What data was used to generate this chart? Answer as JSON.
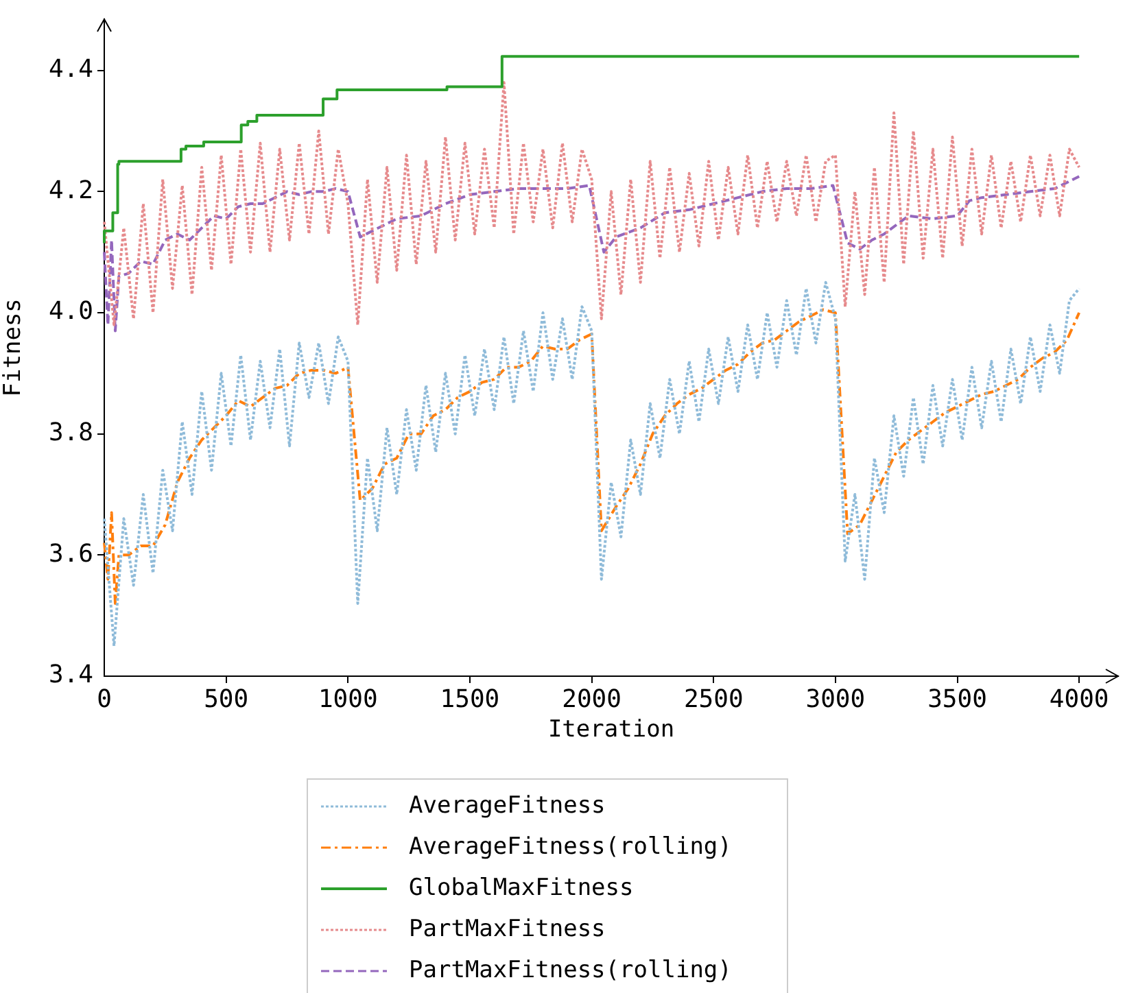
{
  "chart_data": {
    "type": "line",
    "xlabel": "Iteration",
    "ylabel": "Fitness",
    "xlim": [
      0,
      4160
    ],
    "ylim": [
      3.4,
      4.485
    ],
    "xticks": [
      0,
      500,
      1000,
      1500,
      2000,
      2500,
      3000,
      3500,
      4000
    ],
    "yticks": [
      3.4,
      3.6,
      3.8,
      {
        "value": 4,
        "label": "4.0"
      },
      4.2,
      4.4
    ],
    "grid": false,
    "legend": "bottom",
    "marker": "none",
    "series": [
      {
        "name": "AverageFitness",
        "color": "#8fbbd9",
        "line_style": "dotted",
        "x": [
          0,
          40,
          80,
          120,
          160,
          200,
          240,
          280,
          320,
          360,
          400,
          440,
          480,
          520,
          560,
          600,
          640,
          680,
          720,
          760,
          800,
          840,
          880,
          920,
          960,
          1000,
          1040,
          1080,
          1120,
          1160,
          1200,
          1240,
          1280,
          1320,
          1360,
          1400,
          1440,
          1480,
          1520,
          1560,
          1600,
          1640,
          1680,
          1720,
          1760,
          1800,
          1840,
          1880,
          1920,
          1960,
          2000,
          2040,
          2080,
          2120,
          2160,
          2200,
          2240,
          2280,
          2320,
          2360,
          2400,
          2440,
          2480,
          2520,
          2560,
          2600,
          2640,
          2680,
          2720,
          2760,
          2800,
          2840,
          2880,
          2920,
          2960,
          3000,
          3040,
          3080,
          3120,
          3160,
          3200,
          3240,
          3280,
          3320,
          3360,
          3400,
          3440,
          3480,
          3520,
          3560,
          3600,
          3640,
          3680,
          3720,
          3760,
          3800,
          3840,
          3880,
          3920,
          3960,
          4000
        ],
        "values": [
          3.66,
          3.45,
          3.66,
          3.55,
          3.7,
          3.57,
          3.74,
          3.64,
          3.82,
          3.7,
          3.87,
          3.74,
          3.9,
          3.78,
          3.93,
          3.79,
          3.92,
          3.81,
          3.94,
          3.78,
          3.95,
          3.86,
          3.95,
          3.85,
          3.96,
          3.92,
          3.52,
          3.76,
          3.64,
          3.81,
          3.7,
          3.84,
          3.74,
          3.88,
          3.77,
          3.9,
          3.8,
          3.93,
          3.83,
          3.94,
          3.84,
          3.96,
          3.85,
          3.97,
          3.87,
          4.0,
          3.89,
          3.99,
          3.89,
          4.01,
          3.97,
          3.56,
          3.72,
          3.63,
          3.79,
          3.7,
          3.85,
          3.76,
          3.89,
          3.8,
          3.92,
          3.82,
          3.94,
          3.85,
          3.96,
          3.87,
          3.98,
          3.89,
          4.0,
          3.91,
          4.02,
          3.93,
          4.04,
          3.95,
          4.05,
          3.99,
          3.59,
          3.7,
          3.56,
          3.76,
          3.67,
          3.83,
          3.73,
          3.86,
          3.75,
          3.88,
          3.78,
          3.89,
          3.79,
          3.91,
          3.81,
          3.92,
          3.82,
          3.94,
          3.85,
          3.96,
          3.87,
          3.98,
          3.9,
          4.02,
          4.04
        ]
      },
      {
        "name": "AverageFitness(rolling)",
        "color": "#ff7f0e",
        "line_style": "dashdot",
        "x": [
          0,
          15,
          30,
          45,
          60,
          100,
          150,
          200,
          250,
          300,
          350,
          400,
          450,
          500,
          550,
          600,
          650,
          700,
          750,
          800,
          850,
          900,
          950,
          1000,
          1050,
          1100,
          1150,
          1200,
          1250,
          1300,
          1350,
          1400,
          1450,
          1500,
          1550,
          1600,
          1650,
          1700,
          1750,
          1800,
          1850,
          1900,
          1950,
          2000,
          2040,
          2100,
          2150,
          2200,
          2250,
          2300,
          2350,
          2400,
          2450,
          2500,
          2550,
          2600,
          2650,
          2700,
          2750,
          2800,
          2850,
          2900,
          2950,
          3000,
          3050,
          3100,
          3150,
          3200,
          3250,
          3300,
          3350,
          3400,
          3450,
          3500,
          3550,
          3600,
          3650,
          3700,
          3750,
          3800,
          3850,
          3900,
          3950,
          4000
        ],
        "values": [
          3.62,
          3.56,
          3.67,
          3.52,
          3.6,
          3.6,
          3.615,
          3.615,
          3.65,
          3.72,
          3.76,
          3.79,
          3.81,
          3.83,
          3.855,
          3.845,
          3.86,
          3.875,
          3.88,
          3.9,
          3.905,
          3.905,
          3.9,
          3.91,
          3.69,
          3.71,
          3.75,
          3.76,
          3.8,
          3.8,
          3.83,
          3.84,
          3.86,
          3.87,
          3.885,
          3.89,
          3.91,
          3.91,
          3.92,
          3.945,
          3.94,
          3.94,
          3.955,
          3.965,
          3.64,
          3.68,
          3.71,
          3.75,
          3.8,
          3.83,
          3.85,
          3.865,
          3.875,
          3.89,
          3.905,
          3.915,
          3.935,
          3.95,
          3.955,
          3.97,
          3.985,
          3.995,
          4.005,
          4.0,
          3.635,
          3.65,
          3.69,
          3.73,
          3.77,
          3.79,
          3.805,
          3.82,
          3.835,
          3.845,
          3.855,
          3.865,
          3.87,
          3.88,
          3.89,
          3.91,
          3.925,
          3.935,
          3.955,
          4.0
        ]
      },
      {
        "name": "GlobalMaxFitness",
        "color": "#2ca02c",
        "line_style": "solid",
        "type": "step",
        "x": [
          0,
          35,
          55,
          60,
          315,
          335,
          408,
          562,
          589,
          626,
          898,
          955,
          1406,
          1632,
          1664,
          4000
        ],
        "values": [
          4.115,
          4.135,
          4.165,
          4.245,
          4.25,
          4.27,
          4.275,
          4.282,
          4.31,
          4.316,
          4.326,
          4.353,
          4.368,
          4.373,
          4.423,
          4.423
        ]
      },
      {
        "name": "PartMaxFitness",
        "color": "#e68a8c",
        "line_style": "dotted",
        "x": [
          0,
          40,
          80,
          120,
          160,
          200,
          240,
          280,
          320,
          360,
          400,
          440,
          480,
          520,
          560,
          600,
          640,
          680,
          720,
          760,
          800,
          840,
          880,
          920,
          960,
          1000,
          1040,
          1080,
          1120,
          1160,
          1200,
          1240,
          1280,
          1320,
          1360,
          1400,
          1440,
          1480,
          1520,
          1560,
          1600,
          1640,
          1680,
          1720,
          1760,
          1800,
          1840,
          1880,
          1920,
          1960,
          2000,
          2040,
          2080,
          2120,
          2160,
          2200,
          2240,
          2280,
          2320,
          2360,
          2400,
          2440,
          2480,
          2520,
          2560,
          2600,
          2640,
          2680,
          2720,
          2760,
          2800,
          2840,
          2880,
          2920,
          2960,
          3000,
          3040,
          3080,
          3120,
          3160,
          3200,
          3240,
          3280,
          3320,
          3360,
          3400,
          3440,
          3480,
          3520,
          3560,
          3600,
          3640,
          3680,
          3720,
          3760,
          3800,
          3840,
          3880,
          3920,
          3960,
          4000
        ],
        "values": [
          4.15,
          3.98,
          4.14,
          3.99,
          4.18,
          4.0,
          4.22,
          4.04,
          4.21,
          4.03,
          4.24,
          4.07,
          4.26,
          4.08,
          4.27,
          4.1,
          4.28,
          4.1,
          4.27,
          4.12,
          4.28,
          4.13,
          4.3,
          4.13,
          4.27,
          4.18,
          3.98,
          4.22,
          4.05,
          4.24,
          4.07,
          4.26,
          4.08,
          4.25,
          4.1,
          4.29,
          4.12,
          4.28,
          4.13,
          4.27,
          4.14,
          4.38,
          4.13,
          4.28,
          4.15,
          4.27,
          4.14,
          4.28,
          4.15,
          4.27,
          4.22,
          3.99,
          4.2,
          4.03,
          4.22,
          4.05,
          4.25,
          4.09,
          4.24,
          4.1,
          4.23,
          4.11,
          4.25,
          4.12,
          4.24,
          4.13,
          4.26,
          4.14,
          4.25,
          4.15,
          4.25,
          4.16,
          4.26,
          4.15,
          4.25,
          4.26,
          4.01,
          4.2,
          4.03,
          4.24,
          4.05,
          4.33,
          4.08,
          4.3,
          4.09,
          4.27,
          4.09,
          4.29,
          4.11,
          4.27,
          4.13,
          4.26,
          4.14,
          4.25,
          4.15,
          4.26,
          4.16,
          4.26,
          4.16,
          4.27,
          4.24
        ]
      },
      {
        "name": "PartMaxFitness(rolling)",
        "color": "#9467bd",
        "line_style": "dashed",
        "x": [
          0,
          15,
          30,
          45,
          60,
          100,
          150,
          200,
          250,
          300,
          350,
          400,
          450,
          500,
          550,
          600,
          650,
          700,
          750,
          800,
          850,
          900,
          950,
          1000,
          1050,
          1100,
          1200,
          1300,
          1400,
          1500,
          1600,
          1700,
          1800,
          1900,
          1990,
          2050,
          2100,
          2200,
          2300,
          2400,
          2500,
          2600,
          2700,
          2800,
          2900,
          2990,
          3050,
          3100,
          3150,
          3200,
          3300,
          3400,
          3500,
          3550,
          3600,
          3700,
          3800,
          3900,
          4000
        ],
        "values": [
          4.1,
          3.98,
          4.12,
          3.97,
          4.06,
          4.065,
          4.085,
          4.08,
          4.12,
          4.13,
          4.12,
          4.14,
          4.16,
          4.155,
          4.175,
          4.18,
          4.18,
          4.19,
          4.2,
          4.195,
          4.2,
          4.2,
          4.205,
          4.2,
          4.125,
          4.135,
          4.155,
          4.16,
          4.18,
          4.195,
          4.2,
          4.205,
          4.205,
          4.205,
          4.21,
          4.1,
          4.125,
          4.14,
          4.165,
          4.17,
          4.18,
          4.19,
          4.2,
          4.205,
          4.205,
          4.21,
          4.115,
          4.105,
          4.12,
          4.13,
          4.16,
          4.155,
          4.16,
          4.185,
          4.19,
          4.195,
          4.2,
          4.205,
          4.225
        ]
      }
    ]
  }
}
